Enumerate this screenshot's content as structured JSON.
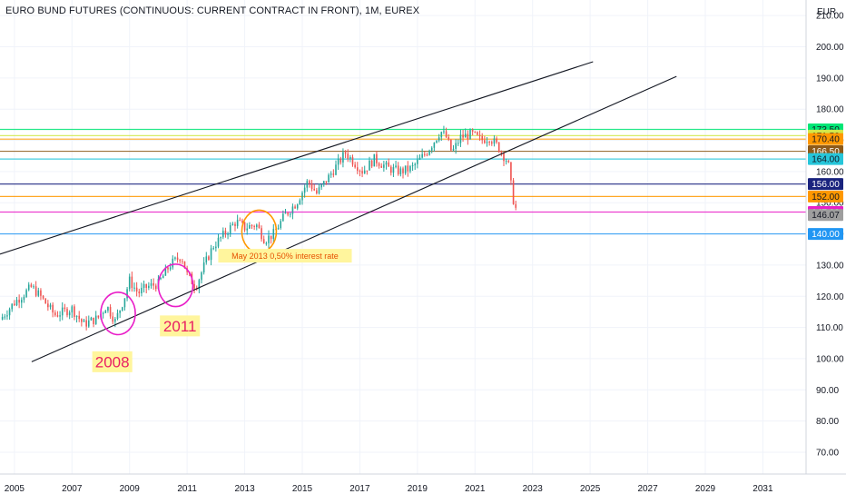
{
  "header": {
    "title": "EURO BUND FUTURES (CONTINUOUS: CURRENT CONTRACT IN FRONT), 1M, EUREX",
    "currency": "EUR"
  },
  "chart_data": {
    "type": "candlestick",
    "title": "EURO BUND FUTURES (CONTINUOUS: CURRENT CONTRACT IN FRONT), 1M, EUREX",
    "y_unit": "EUR",
    "ylim": [
      63,
      215
    ],
    "xlim": [
      2004.5,
      2032.5
    ],
    "grid": true,
    "y_ticks": [
      "210.00",
      "200.00",
      "190.00",
      "180.00",
      "170.00",
      "160.00",
      "150.00",
      "140.00",
      "130.00",
      "120.00",
      "110.00",
      "100.00",
      "90.00",
      "80.00",
      "70.00"
    ],
    "x_ticks": [
      "2005",
      "2007",
      "2009",
      "2011",
      "2013",
      "2015",
      "2017",
      "2019",
      "2021",
      "2023",
      "2025",
      "2027",
      "2029",
      "2031"
    ],
    "price_path": [
      [
        2004.5,
        112.5
      ],
      [
        2005.0,
        118
      ],
      [
        2005.6,
        123
      ],
      [
        2005.9,
        120
      ],
      [
        2006.4,
        114
      ],
      [
        2007.0,
        116
      ],
      [
        2007.4,
        111
      ],
      [
        2007.9,
        113
      ],
      [
        2008.2,
        117
      ],
      [
        2008.5,
        112
      ],
      [
        2008.8,
        119
      ],
      [
        2009.0,
        125
      ],
      [
        2009.3,
        121
      ],
      [
        2009.6,
        123
      ],
      [
        2010.0,
        124
      ],
      [
        2010.4,
        130
      ],
      [
        2010.8,
        133
      ],
      [
        2011.0,
        127
      ],
      [
        2011.3,
        123
      ],
      [
        2011.6,
        130
      ],
      [
        2011.9,
        136
      ],
      [
        2012.3,
        140
      ],
      [
        2012.7,
        144
      ],
      [
        2013.0,
        142
      ],
      [
        2013.4,
        143
      ],
      [
        2013.7,
        138
      ],
      [
        2014.0,
        140
      ],
      [
        2014.4,
        146
      ],
      [
        2014.8,
        150
      ],
      [
        2015.2,
        157
      ],
      [
        2015.5,
        153
      ],
      [
        2015.9,
        158
      ],
      [
        2016.2,
        162
      ],
      [
        2016.5,
        166
      ],
      [
        2016.8,
        163
      ],
      [
        2017.1,
        160
      ],
      [
        2017.5,
        164
      ],
      [
        2018.0,
        161
      ],
      [
        2018.4,
        160
      ],
      [
        2018.8,
        161
      ],
      [
        2019.0,
        163
      ],
      [
        2019.3,
        166
      ],
      [
        2019.6,
        170
      ],
      [
        2019.8,
        173
      ],
      [
        2020.0,
        171
      ],
      [
        2020.2,
        166
      ],
      [
        2020.5,
        171
      ],
      [
        2020.9,
        172
      ],
      [
        2021.2,
        170
      ],
      [
        2021.5,
        171
      ],
      [
        2021.8,
        168
      ],
      [
        2022.0,
        165
      ],
      [
        2022.15,
        163
      ],
      [
        2022.3,
        152
      ],
      [
        2022.45,
        147
      ]
    ],
    "levels": [
      {
        "value": 173.5,
        "label": "173.50",
        "color": "#00e676"
      },
      {
        "value": 171.5,
        "label": "171.50",
        "color": "#d1e94b"
      },
      {
        "value": 170.4,
        "label": "170.40",
        "color": "#ff9800"
      },
      {
        "value": 166.5,
        "label": "166.50",
        "color": "#8d5a1a"
      },
      {
        "value": 164.0,
        "label": "164.00",
        "color": "#26c6da"
      },
      {
        "value": 156.0,
        "label": "156.00",
        "color": "#1a237e"
      },
      {
        "value": 152.0,
        "label": "152.00",
        "color": "#ff9800"
      },
      {
        "value": 147.0,
        "label": "147.00",
        "color": "#e91ec8"
      },
      {
        "value": 140.0,
        "label": "140.00",
        "color": "#2196f3"
      }
    ],
    "last_price": {
      "value": 146.07,
      "label": "146.07",
      "color": "#9e9e9e"
    },
    "trendlines": [
      {
        "from": [
          2004.5,
          133.5
        ],
        "to": [
          2025.1,
          195.2
        ],
        "color": "#131722"
      },
      {
        "from": [
          2005.6,
          99.0
        ],
        "to": [
          2028.0,
          190.5
        ],
        "color": "#131722"
      }
    ],
    "annotations": [
      {
        "kind": "circle",
        "at": [
          2008.6,
          114.5
        ],
        "rx_years": 0.6,
        "ry_value": 6.8,
        "color": "#e91ec8"
      },
      {
        "kind": "circle",
        "at": [
          2010.6,
          123.5
        ],
        "rx_years": 0.6,
        "ry_value": 6.8,
        "color": "#e91ec8"
      },
      {
        "kind": "circle",
        "at": [
          2013.5,
          140.8
        ],
        "rx_years": 0.6,
        "ry_value": 6.8,
        "color": "#ff9800"
      },
      {
        "kind": "label",
        "text": "2008",
        "at": [
          2008.4,
          99.0
        ],
        "color": "#e91e63",
        "bg": "#fff59d",
        "size": 17
      },
      {
        "kind": "label",
        "text": "2011",
        "at": [
          2010.75,
          110.5
        ],
        "color": "#e91e63",
        "bg": "#fff59d",
        "size": 17
      },
      {
        "kind": "label",
        "text": "May 2013 0,50% interest rate",
        "at": [
          2014.4,
          133.0
        ],
        "color": "#e65100",
        "bg": "#fff59d",
        "size": 9
      }
    ]
  }
}
